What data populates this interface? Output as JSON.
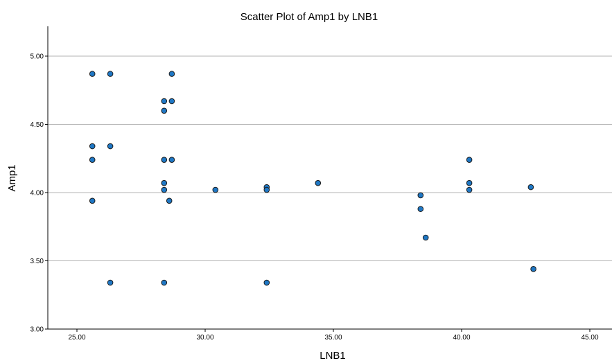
{
  "chart_data": {
    "type": "scatter",
    "title": "Scatter Plot of Amp1 by LNB1",
    "xlabel": "LNB1",
    "ylabel": "Amp1",
    "xlim": [
      24,
      45.8
    ],
    "ylim": [
      3.0,
      5.22
    ],
    "x_ticks": [
      25.0,
      30.0,
      35.0,
      40.0,
      45.0
    ],
    "x_tick_labels": [
      "25.00",
      "30.00",
      "35.00",
      "40.00",
      "45.00"
    ],
    "y_ticks": [
      3.0,
      3.5,
      4.0,
      4.5,
      5.0
    ],
    "y_tick_labels": [
      "3.00",
      "3.50",
      "4.00",
      "4.50",
      "5.00"
    ],
    "grid": "horizontal",
    "legend": "none",
    "colors": {
      "marker_fill": "#1f77c4",
      "marker_stroke": "#1a1a1a",
      "gridline": "#b3b3b3",
      "axis": "#000000"
    },
    "series": [
      {
        "points": [
          {
            "x": 25.6,
            "y": 4.87
          },
          {
            "x": 26.3,
            "y": 4.87
          },
          {
            "x": 28.7,
            "y": 4.87
          },
          {
            "x": 28.4,
            "y": 4.67
          },
          {
            "x": 28.7,
            "y": 4.67
          },
          {
            "x": 28.4,
            "y": 4.6
          },
          {
            "x": 25.6,
            "y": 4.34
          },
          {
            "x": 26.3,
            "y": 4.34
          },
          {
            "x": 25.6,
            "y": 4.24
          },
          {
            "x": 28.4,
            "y": 4.24
          },
          {
            "x": 28.7,
            "y": 4.24
          },
          {
            "x": 28.4,
            "y": 4.07
          },
          {
            "x": 28.4,
            "y": 4.02
          },
          {
            "x": 30.4,
            "y": 4.02
          },
          {
            "x": 32.4,
            "y": 4.04
          },
          {
            "x": 32.4,
            "y": 4.02
          },
          {
            "x": 34.4,
            "y": 4.07
          },
          {
            "x": 25.6,
            "y": 3.94
          },
          {
            "x": 28.6,
            "y": 3.94
          },
          {
            "x": 38.4,
            "y": 3.98
          },
          {
            "x": 38.4,
            "y": 3.88
          },
          {
            "x": 38.6,
            "y": 3.67
          },
          {
            "x": 40.3,
            "y": 4.24
          },
          {
            "x": 40.3,
            "y": 4.07
          },
          {
            "x": 40.3,
            "y": 4.02
          },
          {
            "x": 42.7,
            "y": 4.04
          },
          {
            "x": 42.8,
            "y": 3.44
          },
          {
            "x": 26.3,
            "y": 3.34
          },
          {
            "x": 28.4,
            "y": 3.34
          },
          {
            "x": 32.4,
            "y": 3.34
          }
        ]
      }
    ]
  }
}
